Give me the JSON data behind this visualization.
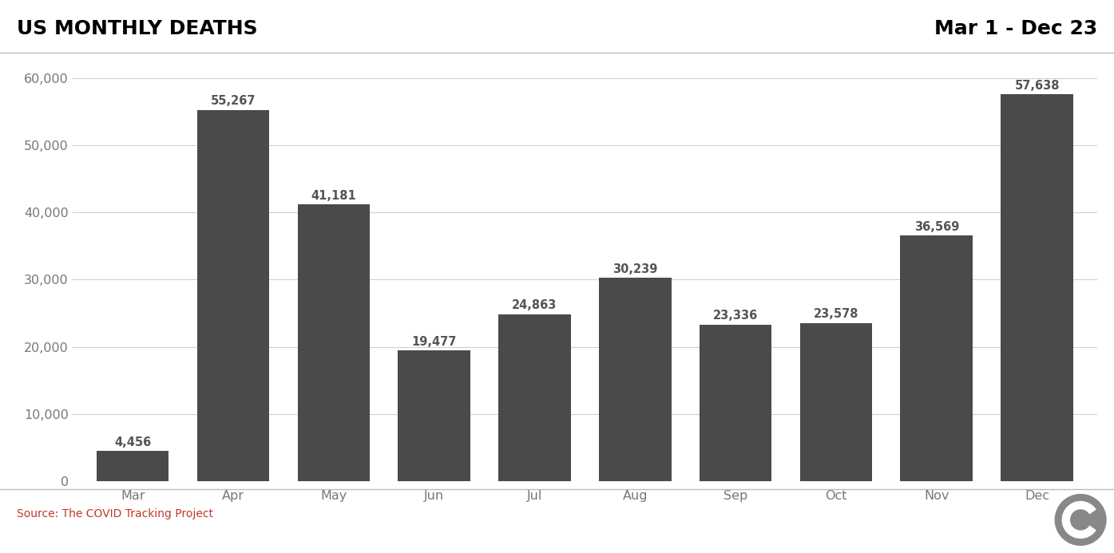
{
  "title_left": "US MONTHLY DEATHS",
  "title_right": "Mar 1 - Dec 23",
  "categories": [
    "Mar",
    "Apr",
    "May",
    "Jun",
    "Jul",
    "Aug",
    "Sep",
    "Oct",
    "Nov",
    "Dec"
  ],
  "values": [
    4456,
    55267,
    41181,
    19477,
    24863,
    30239,
    23336,
    23578,
    36569,
    57638
  ],
  "bar_color": "#4a4a4a",
  "background_color": "#ffffff",
  "ylim": [
    0,
    63000
  ],
  "yticks": [
    0,
    10000,
    20000,
    30000,
    40000,
    50000,
    60000
  ],
  "source_text": "Source: The COVID Tracking Project",
  "source_color": "#c0392b",
  "title_color": "#000000",
  "title_right_color": "#000000",
  "label_color": "#555555",
  "grid_color": "#d0d0d0",
  "tick_color": "#777777",
  "title_fontsize": 18,
  "bar_width": 0.72,
  "label_fontsize": 10.5,
  "tick_fontsize": 11.5
}
